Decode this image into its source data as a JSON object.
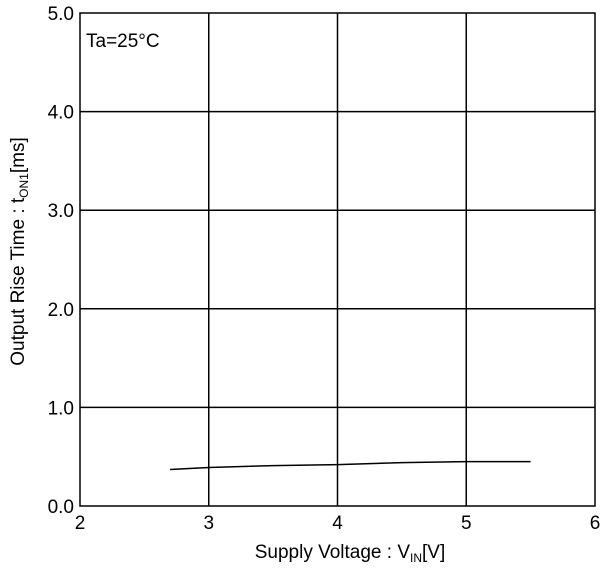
{
  "chart_data": {
    "type": "line",
    "title": "",
    "annotation": "Ta=25°C",
    "xlabel": {
      "main": "Supply Voltage : V",
      "sub": "IN",
      "unit": "[V]"
    },
    "ylabel": {
      "main": "Output Rise Time : t",
      "sub": "ON1",
      "unit": "[ms]"
    },
    "xlim": [
      2,
      6
    ],
    "ylim": [
      0.0,
      5.0
    ],
    "x_ticks": [
      2,
      3,
      4,
      5,
      6
    ],
    "x_tick_labels": [
      "2",
      "3",
      "4",
      "5",
      "6"
    ],
    "y_ticks": [
      0.0,
      1.0,
      2.0,
      3.0,
      4.0,
      5.0
    ],
    "y_tick_labels": [
      "0.0",
      "1.0",
      "2.0",
      "3.0",
      "4.0",
      "5.0"
    ],
    "grid": true,
    "series": [
      {
        "color": "#000000",
        "x": [
          2.7,
          3.0,
          3.5,
          4.0,
          4.5,
          5.0,
          5.5
        ],
        "y": [
          0.37,
          0.39,
          0.41,
          0.42,
          0.44,
          0.45,
          0.45
        ]
      }
    ]
  }
}
